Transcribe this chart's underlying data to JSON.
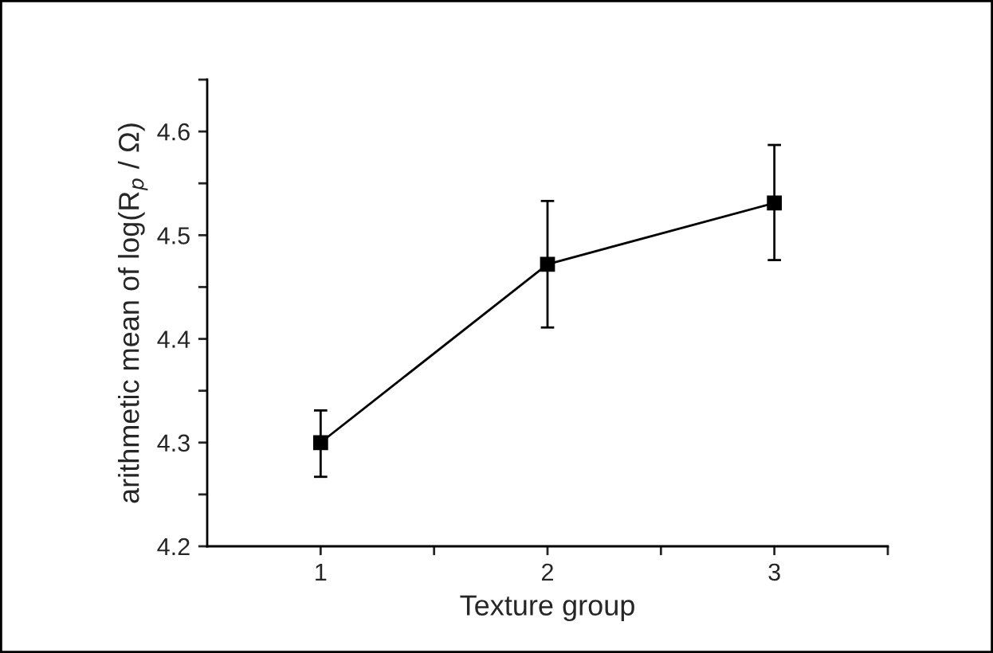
{
  "chart_data": {
    "type": "line",
    "xlabel": "Texture group",
    "ylabel": "arithmetic mean of log(R$_{p}$ / Ω)",
    "x": [
      1,
      2,
      3
    ],
    "series": [
      {
        "color": "#000000",
        "values": [
          4.3,
          4.472,
          4.531
        ],
        "errors": [
          [
            4.267,
            4.331
          ],
          [
            4.411,
            4.533
          ],
          [
            4.476,
            4.587
          ]
        ]
      }
    ],
    "xlim": [
      0.5,
      3.5
    ],
    "xticks": [
      1,
      {
        "value": 1.5,
        "label": null
      },
      2,
      {
        "value": 2.5,
        "label": null
      },
      3,
      {
        "value": 3.5,
        "label": null
      }
    ],
    "ylim": [
      4.2,
      4.65
    ],
    "yticks": [
      {
        "value": 4.2,
        "label": "4.2"
      },
      {
        "value": 4.25,
        "label": null
      },
      {
        "value": 4.3,
        "label": "4.3"
      },
      {
        "value": 4.35,
        "label": null
      },
      {
        "value": 4.4,
        "label": "4.4"
      },
      {
        "value": 4.45,
        "label": null
      },
      {
        "value": 4.5,
        "label": "4.5"
      },
      {
        "value": 4.55,
        "label": null
      },
      {
        "value": 4.6,
        "label": "4.6"
      },
      {
        "value": 4.65,
        "label": null
      }
    ],
    "marker": "square",
    "line_style": "solid",
    "grid": false,
    "legend": false
  }
}
